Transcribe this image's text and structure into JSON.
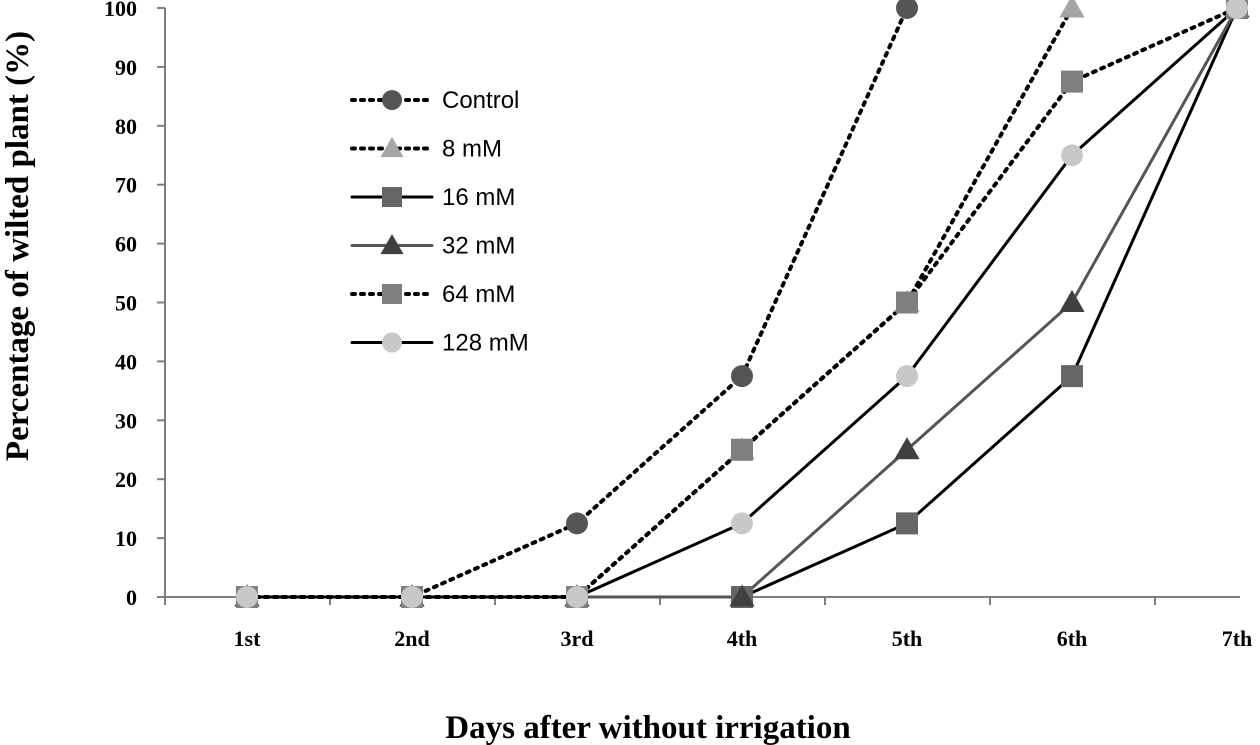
{
  "chart_data": {
    "type": "line",
    "title": "",
    "xlabel": "Days after without irrigation",
    "ylabel": "Percentage of wilted plant (%)",
    "categories": [
      "1st",
      "2nd",
      "3rd",
      "4th",
      "5th",
      "6th",
      "7th"
    ],
    "ylim": [
      0,
      100
    ],
    "yticks": [
      0,
      10,
      20,
      30,
      40,
      50,
      60,
      70,
      80,
      90,
      100
    ],
    "grid": false,
    "legend_position": "top-left",
    "series": [
      {
        "name": "Control",
        "values": [
          0,
          0,
          12.5,
          37.5,
          100,
          null,
          null
        ],
        "line_style": "dotted",
        "line_color": "#000000",
        "marker": "circle",
        "marker_color": "#555555"
      },
      {
        "name": "8 mM",
        "values": [
          0,
          0,
          0,
          25,
          50,
          100,
          null
        ],
        "line_style": "dotted",
        "line_color": "#000000",
        "marker": "triangle",
        "marker_color": "#a6a6a6"
      },
      {
        "name": "16 mM",
        "values": [
          0,
          0,
          0,
          0,
          12.5,
          37.5,
          100
        ],
        "line_style": "solid",
        "line_color": "#000000",
        "marker": "square",
        "marker_color": "#666666"
      },
      {
        "name": "32 mM",
        "values": [
          0,
          0,
          0,
          0,
          25,
          50,
          100
        ],
        "line_style": "solid",
        "line_color": "#555555",
        "marker": "triangle",
        "marker_color": "#404040"
      },
      {
        "name": "64 mM",
        "values": [
          0,
          0,
          0,
          25,
          50,
          87.5,
          100
        ],
        "line_style": "dotted",
        "line_color": "#000000",
        "marker": "square",
        "marker_color": "#7f7f7f"
      },
      {
        "name": "128 mM",
        "values": [
          0,
          0,
          0,
          12.5,
          37.5,
          75,
          100
        ],
        "line_style": "solid",
        "line_color": "#000000",
        "marker": "circle",
        "marker_color": "#c8c8c8"
      }
    ]
  }
}
